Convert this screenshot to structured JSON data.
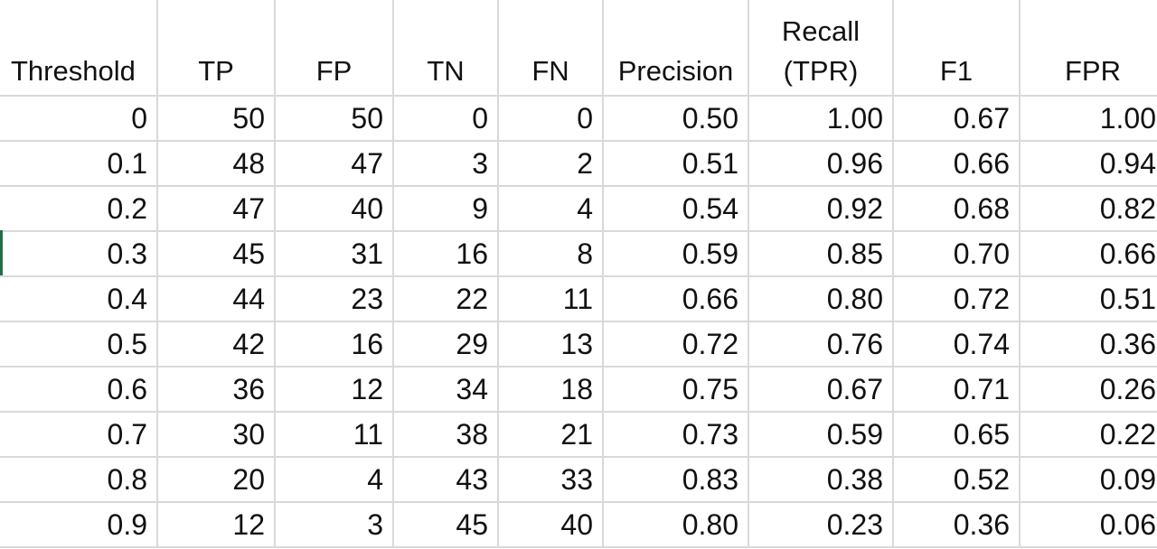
{
  "table": {
    "headers": [
      {
        "lines": [
          "Threshold"
        ]
      },
      {
        "lines": [
          "TP"
        ]
      },
      {
        "lines": [
          "FP"
        ]
      },
      {
        "lines": [
          "TN"
        ]
      },
      {
        "lines": [
          "FN"
        ]
      },
      {
        "lines": [
          "Precision"
        ]
      },
      {
        "lines": [
          "Recall",
          "(TPR)"
        ]
      },
      {
        "lines": [
          "F1"
        ]
      },
      {
        "lines": [
          "FPR"
        ]
      }
    ],
    "rows": [
      [
        "0",
        "50",
        "50",
        "0",
        "0",
        "0.50",
        "1.00",
        "0.67",
        "1.00"
      ],
      [
        "0.1",
        "48",
        "47",
        "3",
        "2",
        "0.51",
        "0.96",
        "0.66",
        "0.94"
      ],
      [
        "0.2",
        "47",
        "40",
        "9",
        "4",
        "0.54",
        "0.92",
        "0.68",
        "0.82"
      ],
      [
        "0.3",
        "45",
        "31",
        "16",
        "8",
        "0.59",
        "0.85",
        "0.70",
        "0.66"
      ],
      [
        "0.4",
        "44",
        "23",
        "22",
        "11",
        "0.66",
        "0.80",
        "0.72",
        "0.51"
      ],
      [
        "0.5",
        "42",
        "16",
        "29",
        "13",
        "0.72",
        "0.76",
        "0.74",
        "0.36"
      ],
      [
        "0.6",
        "36",
        "12",
        "34",
        "18",
        "0.75",
        "0.67",
        "0.71",
        "0.26"
      ],
      [
        "0.7",
        "30",
        "11",
        "38",
        "21",
        "0.73",
        "0.59",
        "0.65",
        "0.22"
      ],
      [
        "0.8",
        "20",
        "4",
        "43",
        "33",
        "0.83",
        "0.38",
        "0.52",
        "0.09"
      ],
      [
        "0.9",
        "12",
        "3",
        "45",
        "40",
        "0.80",
        "0.23",
        "0.36",
        "0.06"
      ]
    ]
  },
  "colors": {
    "gridline": "#d9d9d9",
    "text": "#111111",
    "selection_accent": "#1e7145"
  }
}
